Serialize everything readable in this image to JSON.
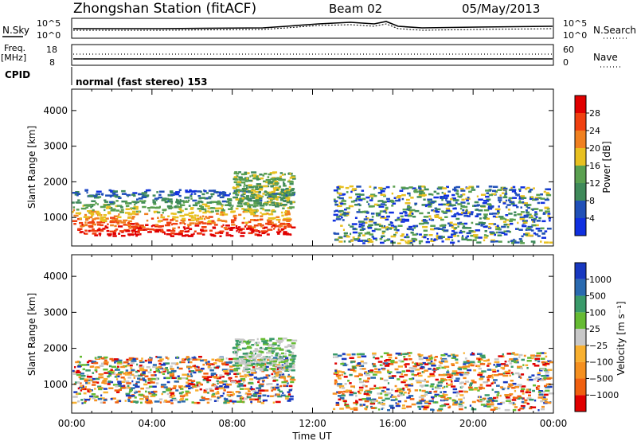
{
  "header": {
    "station": "Zhongshan Station (fitACF)",
    "beam": "Beam 02",
    "date": "05/May/2013"
  },
  "noise_panel": {
    "left_label": "N.Sky",
    "left_ticks": [
      "10^5",
      "10^0"
    ],
    "right_ticks": [
      "10^5",
      "10^0"
    ],
    "right_label": "N.Search"
  },
  "freq_panel": {
    "left_label": "Freq.",
    "left_unit": "[MHz]",
    "left_ticks": [
      "18",
      "8"
    ],
    "right_ticks": [
      "60",
      "0"
    ],
    "right_label": "Nave"
  },
  "cpid": {
    "label": "CPID",
    "text": "normal (fast stereo) 153"
  },
  "colors": {
    "power": [
      "#1030e0",
      "#2050b8",
      "#3f8a5a",
      "#5aa050",
      "#e8c020",
      "#f08020",
      "#f04010",
      "#e00000"
    ],
    "velocity": [
      "#e00000",
      "#f06010",
      "#f59020",
      "#f8b030",
      "#c8c8c8",
      "#66bb33",
      "#3a9a6a",
      "#2a6ab0",
      "#1838c0"
    ]
  },
  "chart_data": [
    {
      "type": "heatmap",
      "title": "",
      "xlabel": "",
      "ylabel": "Slant Range [km]",
      "x_ticks": [
        "00:00",
        "04:00",
        "08:00",
        "12:00",
        "16:00",
        "20:00",
        "00:00"
      ],
      "y_ticks": [
        "1000",
        "2000",
        "3000",
        "4000"
      ],
      "ylim": [
        200,
        4600
      ],
      "colorbar": {
        "label": "Power [dB]",
        "ticks": [
          "4",
          "8",
          "12",
          "16",
          "20",
          "24",
          "28"
        ]
      },
      "scatter_regions": [
        {
          "t_start": 0.0,
          "t_end": 11.0,
          "range_low": 500,
          "range_high": 1800,
          "level": "high"
        },
        {
          "t_start": 8.0,
          "t_end": 11.0,
          "range_low": 1400,
          "range_high": 2300,
          "level": "mid"
        },
        {
          "t_start": 13.0,
          "t_end": 23.8,
          "range_low": 300,
          "range_high": 1900,
          "level": "mixed"
        }
      ]
    },
    {
      "type": "heatmap",
      "title": "",
      "xlabel": "Time UT",
      "ylabel": "Slant Range [km]",
      "x_ticks": [
        "00:00",
        "04:00",
        "08:00",
        "12:00",
        "16:00",
        "20:00",
        "00:00"
      ],
      "y_ticks": [
        "1000",
        "2000",
        "3000",
        "4000"
      ],
      "ylim": [
        200,
        4600
      ],
      "colorbar": {
        "label": "Velocity [m s⁻¹]",
        "ticks": [
          "1000",
          "500",
          "100",
          "25",
          "−25",
          "−100",
          "−500",
          "−1000"
        ]
      },
      "scatter_regions": [
        {
          "t_start": 0.0,
          "t_end": 11.0,
          "range_low": 500,
          "range_high": 1800,
          "level": "negative"
        },
        {
          "t_start": 8.0,
          "t_end": 11.0,
          "range_low": 1400,
          "range_high": 2300,
          "level": "near-zero"
        },
        {
          "t_start": 13.0,
          "t_end": 23.8,
          "range_low": 300,
          "range_high": 1900,
          "level": "mixed"
        }
      ]
    }
  ]
}
